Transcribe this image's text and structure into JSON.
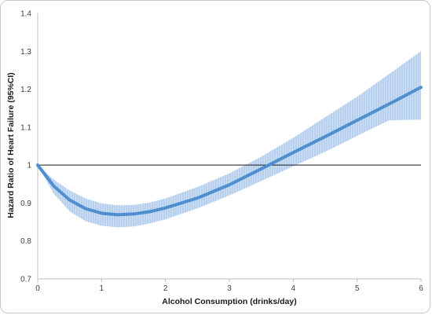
{
  "chart_data": {
    "type": "line",
    "title": "",
    "xlabel": "Alcohol Consumption (drinks/day)",
    "ylabel": "Hazard Ratio of Heart Failure (95%CI)",
    "xlim": [
      0,
      6
    ],
    "ylim": [
      0.7,
      1.4
    ],
    "x_ticks": [
      "0",
      "1",
      "2",
      "3",
      "4",
      "5",
      "6"
    ],
    "y_ticks": [
      "0.7",
      "0.8",
      "0.9",
      "1",
      "1.1",
      "1.2",
      "1.3",
      "1.4"
    ],
    "grid": false,
    "reference_line": 1.0,
    "colors": {
      "line": "#4f8fcf",
      "band_fill": "#cfe0f4",
      "band_hatch": "#8fb6e2",
      "reference": "#1a1a1a",
      "axis": "#bfbfbf"
    },
    "series": [
      {
        "x": [
          0,
          0.25,
          0.5,
          0.75,
          1.0,
          1.25,
          1.5,
          1.75,
          2.0,
          2.5,
          3.0,
          3.5,
          4.0,
          4.5,
          5.0,
          5.5,
          6.0
        ],
        "y": [
          1.0,
          0.945,
          0.908,
          0.885,
          0.873,
          0.869,
          0.871,
          0.877,
          0.887,
          0.913,
          0.948,
          0.99,
          1.033,
          1.075,
          1.118,
          1.161,
          1.205
        ],
        "lower": [
          1.0,
          0.925,
          0.878,
          0.852,
          0.84,
          0.836,
          0.838,
          0.846,
          0.857,
          0.886,
          0.92,
          0.958,
          0.997,
          1.035,
          1.077,
          1.118,
          1.12
        ],
        "upper": [
          1.0,
          0.962,
          0.933,
          0.912,
          0.899,
          0.894,
          0.895,
          0.901,
          0.912,
          0.942,
          0.978,
          1.022,
          1.072,
          1.126,
          1.18,
          1.24,
          1.3
        ]
      }
    ]
  }
}
